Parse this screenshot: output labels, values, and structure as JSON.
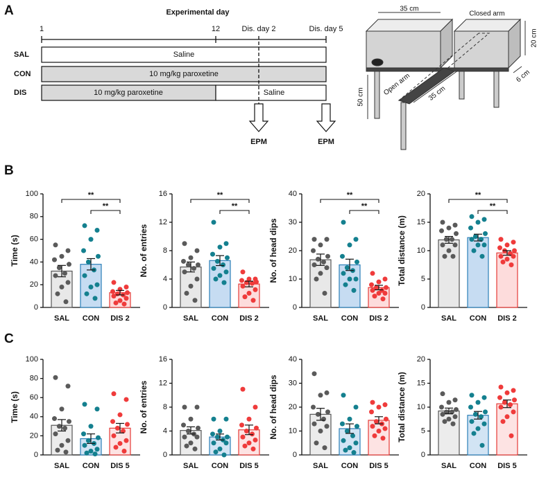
{
  "panel_labels": [
    "A",
    "B",
    "C"
  ],
  "panel_a": {
    "timeline_title": "Experimental day",
    "day_ticks": [
      "1",
      "12",
      "Dis. day 2",
      "Dis. day 5"
    ],
    "groups": [
      {
        "name": "SAL",
        "segments": [
          "Saline"
        ]
      },
      {
        "name": "CON",
        "segments": [
          "10 mg/kg paroxetine"
        ]
      },
      {
        "name": "DIS",
        "segments": [
          "10 mg/kg paroxetine",
          "Saline"
        ]
      }
    ],
    "tests": [
      "EPM",
      "EPM"
    ],
    "maze_labels": {
      "closed_length": "35 cm",
      "closed_arm": "Closed arm",
      "height_wall": "20 cm",
      "width": "6 cm",
      "open_length": "35 cm",
      "open_arm": "Open arm",
      "leg": "50 cm"
    }
  },
  "chart_data": [
    {
      "type": "bar",
      "panel": "B",
      "ylabel": "Time (s)",
      "categories": [
        "SAL",
        "CON",
        "DIS 2"
      ],
      "values": [
        32,
        38,
        13
      ],
      "errors": [
        5,
        5,
        2
      ],
      "points": [
        [
          55,
          50,
          45,
          42,
          38,
          35,
          30,
          28,
          22,
          18,
          12,
          5
        ],
        [
          72,
          68,
          60,
          50,
          45,
          40,
          33,
          28,
          20,
          18,
          12,
          8
        ],
        [
          22,
          18,
          16,
          14,
          13,
          12,
          11,
          10,
          8,
          6,
          4,
          3
        ]
      ],
      "ylim": [
        0,
        100
      ],
      "yticks": [
        0,
        20,
        40,
        60,
        80,
        100
      ],
      "significance": [
        {
          "from": "SAL",
          "to": "DIS 2",
          "label": "**"
        },
        {
          "from": "CON",
          "to": "DIS 2",
          "label": "**"
        }
      ],
      "bar_colors": [
        "#e8e8e8",
        "#c6dcf2",
        "#fddcdc"
      ],
      "edge_colors": [
        "#555555",
        "#2a7fb8",
        "#e53935"
      ],
      "point_colors": [
        "#5a5a5a",
        "#14808f",
        "#ef3b3b"
      ]
    },
    {
      "type": "bar",
      "panel": "B",
      "ylabel": "No. of entries",
      "categories": [
        "SAL",
        "CON",
        "DIS 2"
      ],
      "values": [
        5.7,
        6.6,
        3.3
      ],
      "errors": [
        0.7,
        0.7,
        0.4
      ],
      "points": [
        [
          9,
          8,
          7,
          6.5,
          6,
          6,
          5.5,
          5,
          4,
          3,
          2,
          1
        ],
        [
          12,
          9,
          8.5,
          7.5,
          7,
          6.5,
          6,
          5.5,
          5,
          4.5,
          4,
          3.5
        ],
        [
          5,
          4,
          4,
          3.8,
          3.6,
          3.5,
          3.4,
          3,
          2.5,
          2,
          1.5,
          1
        ]
      ],
      "ylim": [
        0,
        16
      ],
      "yticks": [
        0,
        4,
        8,
        12,
        16
      ],
      "significance": [
        {
          "from": "SAL",
          "to": "DIS 2",
          "label": "**"
        },
        {
          "from": "CON",
          "to": "DIS 2",
          "label": "**"
        }
      ],
      "bar_colors": [
        "#e8e8e8",
        "#c6dcf2",
        "#fddcdc"
      ],
      "edge_colors": [
        "#555555",
        "#2a7fb8",
        "#e53935"
      ],
      "point_colors": [
        "#5a5a5a",
        "#14808f",
        "#ef3b3b"
      ]
    },
    {
      "type": "bar",
      "panel": "B",
      "ylabel": "No. of head dips",
      "categories": [
        "SAL",
        "CON",
        "DIS 2"
      ],
      "values": [
        16.8,
        15,
        7
      ],
      "errors": [
        2,
        2,
        0.8
      ],
      "points": [
        [
          24,
          24,
          22,
          20,
          18,
          17,
          16,
          15,
          14,
          12,
          10,
          5
        ],
        [
          30,
          24,
          22,
          18,
          16,
          14,
          13,
          12,
          10,
          10,
          8,
          6
        ],
        [
          12,
          10,
          9,
          8,
          7,
          7,
          6,
          6,
          5,
          5,
          4,
          3
        ]
      ],
      "ylim": [
        0,
        40
      ],
      "yticks": [
        0,
        10,
        20,
        30,
        40
      ],
      "significance": [
        {
          "from": "SAL",
          "to": "DIS 2",
          "label": "**"
        },
        {
          "from": "CON",
          "to": "DIS 2",
          "label": "**"
        }
      ],
      "bar_colors": [
        "#e8e8e8",
        "#c6dcf2",
        "#fddcdc"
      ],
      "edge_colors": [
        "#555555",
        "#2a7fb8",
        "#e53935"
      ],
      "point_colors": [
        "#5a5a5a",
        "#14808f",
        "#ef3b3b"
      ]
    },
    {
      "type": "bar",
      "panel": "B",
      "ylabel": "Total distance (m)",
      "categories": [
        "SAL",
        "CON",
        "DIS 2"
      ],
      "values": [
        11.9,
        12.3,
        9.6
      ],
      "errors": [
        0.6,
        0.6,
        0.4
      ],
      "points": [
        [
          15,
          14.5,
          14,
          13.5,
          13,
          12,
          12,
          11,
          11,
          10,
          9,
          9
        ],
        [
          16,
          15.5,
          15,
          14,
          13,
          12.5,
          12,
          12,
          11,
          11,
          10,
          9
        ],
        [
          12,
          11.5,
          11,
          10.5,
          10,
          10,
          9.5,
          9,
          9,
          8.5,
          8,
          7.5
        ]
      ],
      "ylim": [
        0,
        20
      ],
      "yticks": [
        0,
        5,
        10,
        15,
        20
      ],
      "significance": [
        {
          "from": "SAL",
          "to": "DIS 2",
          "label": "**"
        },
        {
          "from": "CON",
          "to": "DIS 2",
          "label": "**"
        }
      ],
      "bar_colors": [
        "#e8e8e8",
        "#c6dcf2",
        "#fddcdc"
      ],
      "edge_colors": [
        "#555555",
        "#2a7fb8",
        "#e53935"
      ],
      "point_colors": [
        "#5a5a5a",
        "#14808f",
        "#ef3b3b"
      ]
    },
    {
      "type": "bar",
      "panel": "C",
      "ylabel": "Time (s)",
      "categories": [
        "SAL",
        "CON",
        "DIS 5"
      ],
      "values": [
        31,
        17,
        28
      ],
      "errors": [
        6,
        5,
        5
      ],
      "points": [
        [
          81,
          72,
          48,
          38,
          35,
          30,
          28,
          22,
          15,
          10,
          5,
          3
        ],
        [
          53,
          48,
          30,
          22,
          18,
          15,
          12,
          10,
          6,
          4,
          2,
          1
        ],
        [
          64,
          58,
          42,
          35,
          32,
          28,
          25,
          20,
          15,
          12,
          8,
          4
        ]
      ],
      "ylim": [
        0,
        100
      ],
      "yticks": [
        0,
        20,
        40,
        60,
        80,
        100
      ],
      "bar_colors": [
        "#ececec",
        "#d2e4f4",
        "#fde3e3"
      ],
      "edge_colors": [
        "#555555",
        "#2a7fb8",
        "#e53935"
      ],
      "point_colors": [
        "#5a5a5a",
        "#14808f",
        "#ef3b3b"
      ]
    },
    {
      "type": "bar",
      "panel": "C",
      "ylabel": "No. of entries",
      "categories": [
        "SAL",
        "CON",
        "DIS 5"
      ],
      "values": [
        4.1,
        3,
        4.2
      ],
      "errors": [
        0.6,
        0.5,
        0.8
      ],
      "points": [
        [
          8,
          8,
          6,
          5,
          4.5,
          4,
          3.5,
          3,
          3,
          2,
          1.5,
          1
        ],
        [
          6,
          6,
          4,
          3.5,
          3,
          3,
          2.5,
          2,
          2,
          1,
          0.5,
          0
        ],
        [
          11,
          8,
          6,
          5,
          4.5,
          4,
          3.5,
          3,
          2.5,
          2,
          1.5,
          1
        ]
      ],
      "ylim": [
        0,
        16
      ],
      "yticks": [
        0,
        4,
        8,
        12,
        16
      ],
      "bar_colors": [
        "#ececec",
        "#d2e4f4",
        "#fde3e3"
      ],
      "edge_colors": [
        "#555555",
        "#2a7fb8",
        "#e53935"
      ],
      "point_colors": [
        "#5a5a5a",
        "#14808f",
        "#ef3b3b"
      ]
    },
    {
      "type": "bar",
      "panel": "C",
      "ylabel": "No. of head dips",
      "categories": [
        "SAL",
        "CON",
        "DIS 5"
      ],
      "values": [
        17,
        11,
        14.5
      ],
      "errors": [
        2.5,
        2,
        1.5
      ],
      "points": [
        [
          34,
          26,
          25,
          20,
          18,
          17,
          15,
          13,
          12,
          10,
          5,
          3
        ],
        [
          25,
          20,
          15,
          13,
          12,
          10,
          8,
          6,
          5,
          3,
          2,
          1
        ],
        [
          22,
          21,
          20,
          18,
          15,
          14,
          13,
          12,
          11,
          10,
          8,
          7
        ]
      ],
      "ylim": [
        0,
        40
      ],
      "yticks": [
        0,
        10,
        20,
        30,
        40
      ],
      "bar_colors": [
        "#ececec",
        "#d2e4f4",
        "#fde3e3"
      ],
      "edge_colors": [
        "#555555",
        "#2a7fb8",
        "#e53935"
      ],
      "point_colors": [
        "#5a5a5a",
        "#14808f",
        "#ef3b3b"
      ]
    },
    {
      "type": "bar",
      "panel": "C",
      "ylabel": "Total distance (m)",
      "categories": [
        "SAL",
        "CON",
        "DIS 5"
      ],
      "values": [
        9.2,
        8.3,
        10.7
      ],
      "errors": [
        0.6,
        0.8,
        0.8
      ],
      "points": [
        [
          12.8,
          11.5,
          11,
          10,
          9.5,
          9,
          9,
          8.5,
          8,
          7.5,
          7,
          6.5
        ],
        [
          12.5,
          12,
          11,
          10,
          9,
          8.5,
          8,
          7,
          6.5,
          5.5,
          4.5,
          2
        ],
        [
          14.2,
          13.5,
          13,
          12,
          11.5,
          11,
          10.5,
          10,
          9,
          8,
          7,
          4
        ]
      ],
      "ylim": [
        0,
        20
      ],
      "yticks": [
        0,
        5,
        10,
        15,
        20
      ],
      "bar_colors": [
        "#ececec",
        "#d2e4f4",
        "#fde3e3"
      ],
      "edge_colors": [
        "#555555",
        "#2a7fb8",
        "#e53935"
      ],
      "point_colors": [
        "#5a5a5a",
        "#14808f",
        "#ef3b3b"
      ]
    }
  ]
}
